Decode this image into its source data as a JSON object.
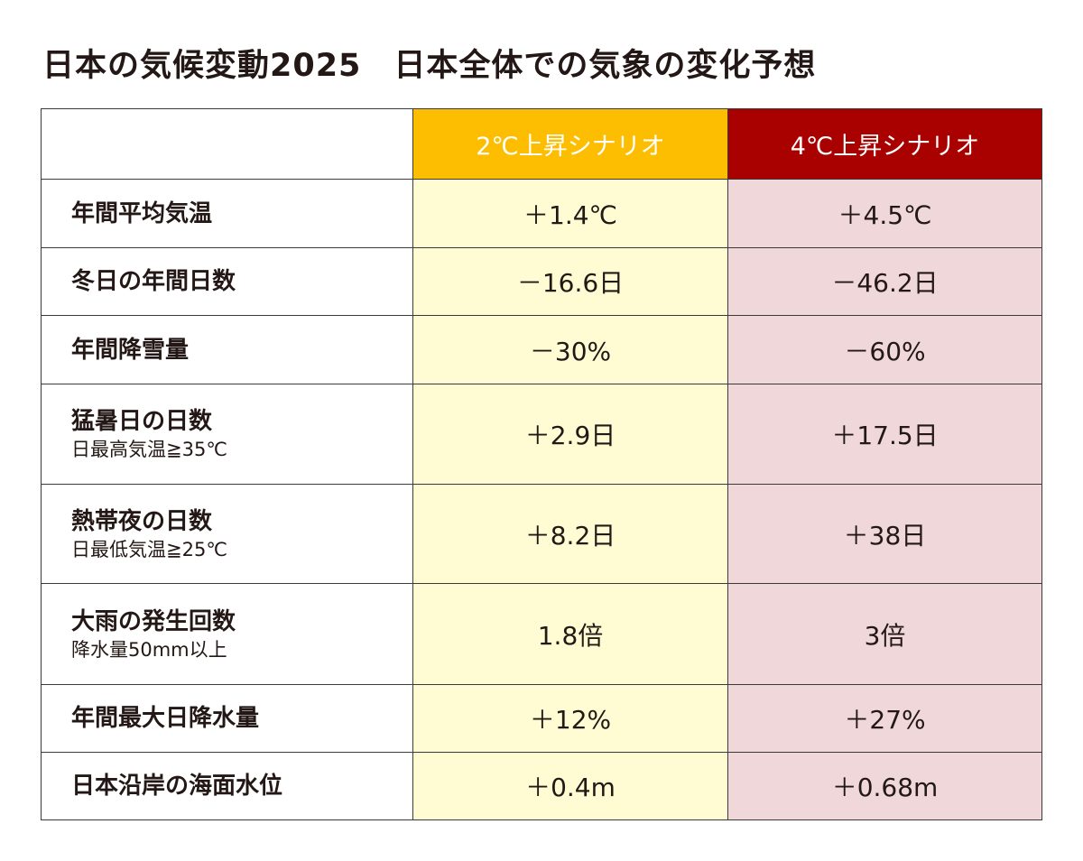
{
  "title": "日本の気候変動2025　日本全体での気象の変化予想",
  "colors": {
    "scenario_2c_header": "#fdbd00",
    "scenario_4c_header": "#a90000",
    "scenario_2c_cell": "#fffcd3",
    "scenario_4c_cell": "#efd7da",
    "text": "#231815"
  },
  "table": {
    "headers": {
      "blank": "",
      "scenario_2c": "2℃上昇シナリオ",
      "scenario_4c": "4℃上昇シナリオ"
    },
    "rows": [
      {
        "label": "年間平均気温",
        "sublabel": "",
        "scenario_2c": "＋1.4℃",
        "scenario_4c": "＋4.5℃"
      },
      {
        "label": "冬日の年間日数",
        "sublabel": "",
        "scenario_2c": "－16.6日",
        "scenario_4c": "－46.2日"
      },
      {
        "label": "年間降雪量",
        "sublabel": "",
        "scenario_2c": "－30%",
        "scenario_4c": "－60%"
      },
      {
        "label": "猛暑日の日数",
        "sublabel": "日最高気温≧35℃",
        "scenario_2c": "＋2.9日",
        "scenario_4c": "＋17.5日"
      },
      {
        "label": "熱帯夜の日数",
        "sublabel": "日最低気温≧25℃",
        "scenario_2c": "＋8.2日",
        "scenario_4c": "＋38日"
      },
      {
        "label": "大雨の発生回数",
        "sublabel": "降水量50mm以上",
        "scenario_2c": "1.8倍",
        "scenario_4c": "3倍"
      },
      {
        "label": "年間最大日降水量",
        "sublabel": "",
        "scenario_2c": "＋12%",
        "scenario_4c": "＋27%"
      },
      {
        "label": "日本沿岸の海面水位",
        "sublabel": "",
        "scenario_2c": "＋0.4m",
        "scenario_4c": "＋0.68m"
      }
    ]
  }
}
